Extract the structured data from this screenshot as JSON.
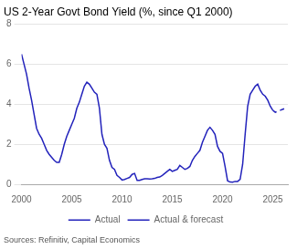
{
  "chart_data": {
    "type": "line",
    "title": "US 2-Year Govt Bond Yield (%, since Q1 2000)",
    "annotations": [
      "Sources: Refinitiv, Capital Economics"
    ],
    "series": [
      {
        "name": "Actual",
        "color": "#2222bb",
        "line_style": "solid",
        "x": [
          2000.0,
          2000.25,
          2000.5,
          2000.75,
          2001.0,
          2001.25,
          2001.5,
          2001.75,
          2002.0,
          2002.25,
          2002.5,
          2002.75,
          2003.0,
          2003.25,
          2003.5,
          2003.75,
          2004.0,
          2004.25,
          2004.5,
          2004.75,
          2005.0,
          2005.25,
          2005.5,
          2005.75,
          2006.0,
          2006.25,
          2006.5,
          2006.75,
          2007.0,
          2007.25,
          2007.5,
          2007.75,
          2008.0,
          2008.25,
          2008.5,
          2008.75,
          2009.0,
          2009.25,
          2009.5,
          2009.75,
          2010.0,
          2010.25,
          2010.5,
          2010.75,
          2011.0,
          2011.25,
          2011.5,
          2011.75,
          2012.0,
          2012.25,
          2012.5,
          2012.75,
          2013.0,
          2013.25,
          2013.5,
          2013.75,
          2014.0,
          2014.25,
          2014.5,
          2014.75,
          2015.0,
          2015.25,
          2015.5,
          2015.75,
          2016.0,
          2016.25,
          2016.5,
          2016.75,
          2017.0,
          2017.25,
          2017.5,
          2017.75,
          2018.0,
          2018.25,
          2018.5,
          2018.75,
          2019.0,
          2019.25,
          2019.5,
          2019.75,
          2020.0,
          2020.25,
          2020.5,
          2020.75,
          2021.0,
          2021.25,
          2021.5,
          2021.75,
          2022.0,
          2022.25,
          2022.5,
          2022.75,
          2023.0,
          2023.25,
          2023.5,
          2023.75,
          2024.0,
          2024.25,
          2024.5,
          2024.75,
          2025.0
        ],
        "values": [
          6.5,
          6.0,
          5.5,
          4.8,
          4.2,
          3.5,
          2.8,
          2.5,
          2.3,
          2.0,
          1.7,
          1.5,
          1.35,
          1.2,
          1.1,
          1.1,
          1.5,
          2.0,
          2.4,
          2.7,
          3.0,
          3.3,
          3.8,
          4.1,
          4.5,
          4.9,
          5.1,
          5.0,
          4.8,
          4.6,
          4.5,
          3.8,
          2.5,
          2.0,
          1.8,
          1.2,
          0.85,
          0.75,
          0.45,
          0.35,
          0.22,
          0.25,
          0.3,
          0.35,
          0.5,
          0.55,
          0.2,
          0.2,
          0.25,
          0.28,
          0.28,
          0.27,
          0.28,
          0.3,
          0.35,
          0.37,
          0.45,
          0.55,
          0.65,
          0.75,
          0.65,
          0.7,
          0.75,
          0.95,
          0.85,
          0.75,
          0.8,
          0.9,
          1.2,
          1.4,
          1.55,
          1.7,
          2.1,
          2.4,
          2.7,
          2.85,
          2.7,
          2.5,
          1.9,
          1.65,
          1.55,
          0.9,
          0.18,
          0.12,
          0.11,
          0.15,
          0.15,
          0.25,
          1.0,
          2.5,
          3.9,
          4.5,
          4.7,
          4.9,
          5.0,
          4.7,
          4.5,
          4.4,
          4.2,
          3.9,
          3.7
        ]
      },
      {
        "name": "Actual & forecast",
        "color": "#2222bb",
        "line_style": "dashed",
        "x": [
          2025.0,
          2025.25,
          2025.5,
          2025.75,
          2026.0,
          2026.25
        ],
        "values": [
          3.7,
          3.6,
          3.65,
          3.7,
          3.75,
          3.8
        ]
      }
    ],
    "xlim": [
      2000,
      2026.5
    ],
    "xticks": [
      2000,
      2005,
      2010,
      2015,
      2020,
      2025
    ],
    "ylim": [
      0,
      8
    ],
    "yticks": [
      0,
      2,
      4,
      6,
      8
    ],
    "grid": true,
    "legend": "bottom"
  }
}
